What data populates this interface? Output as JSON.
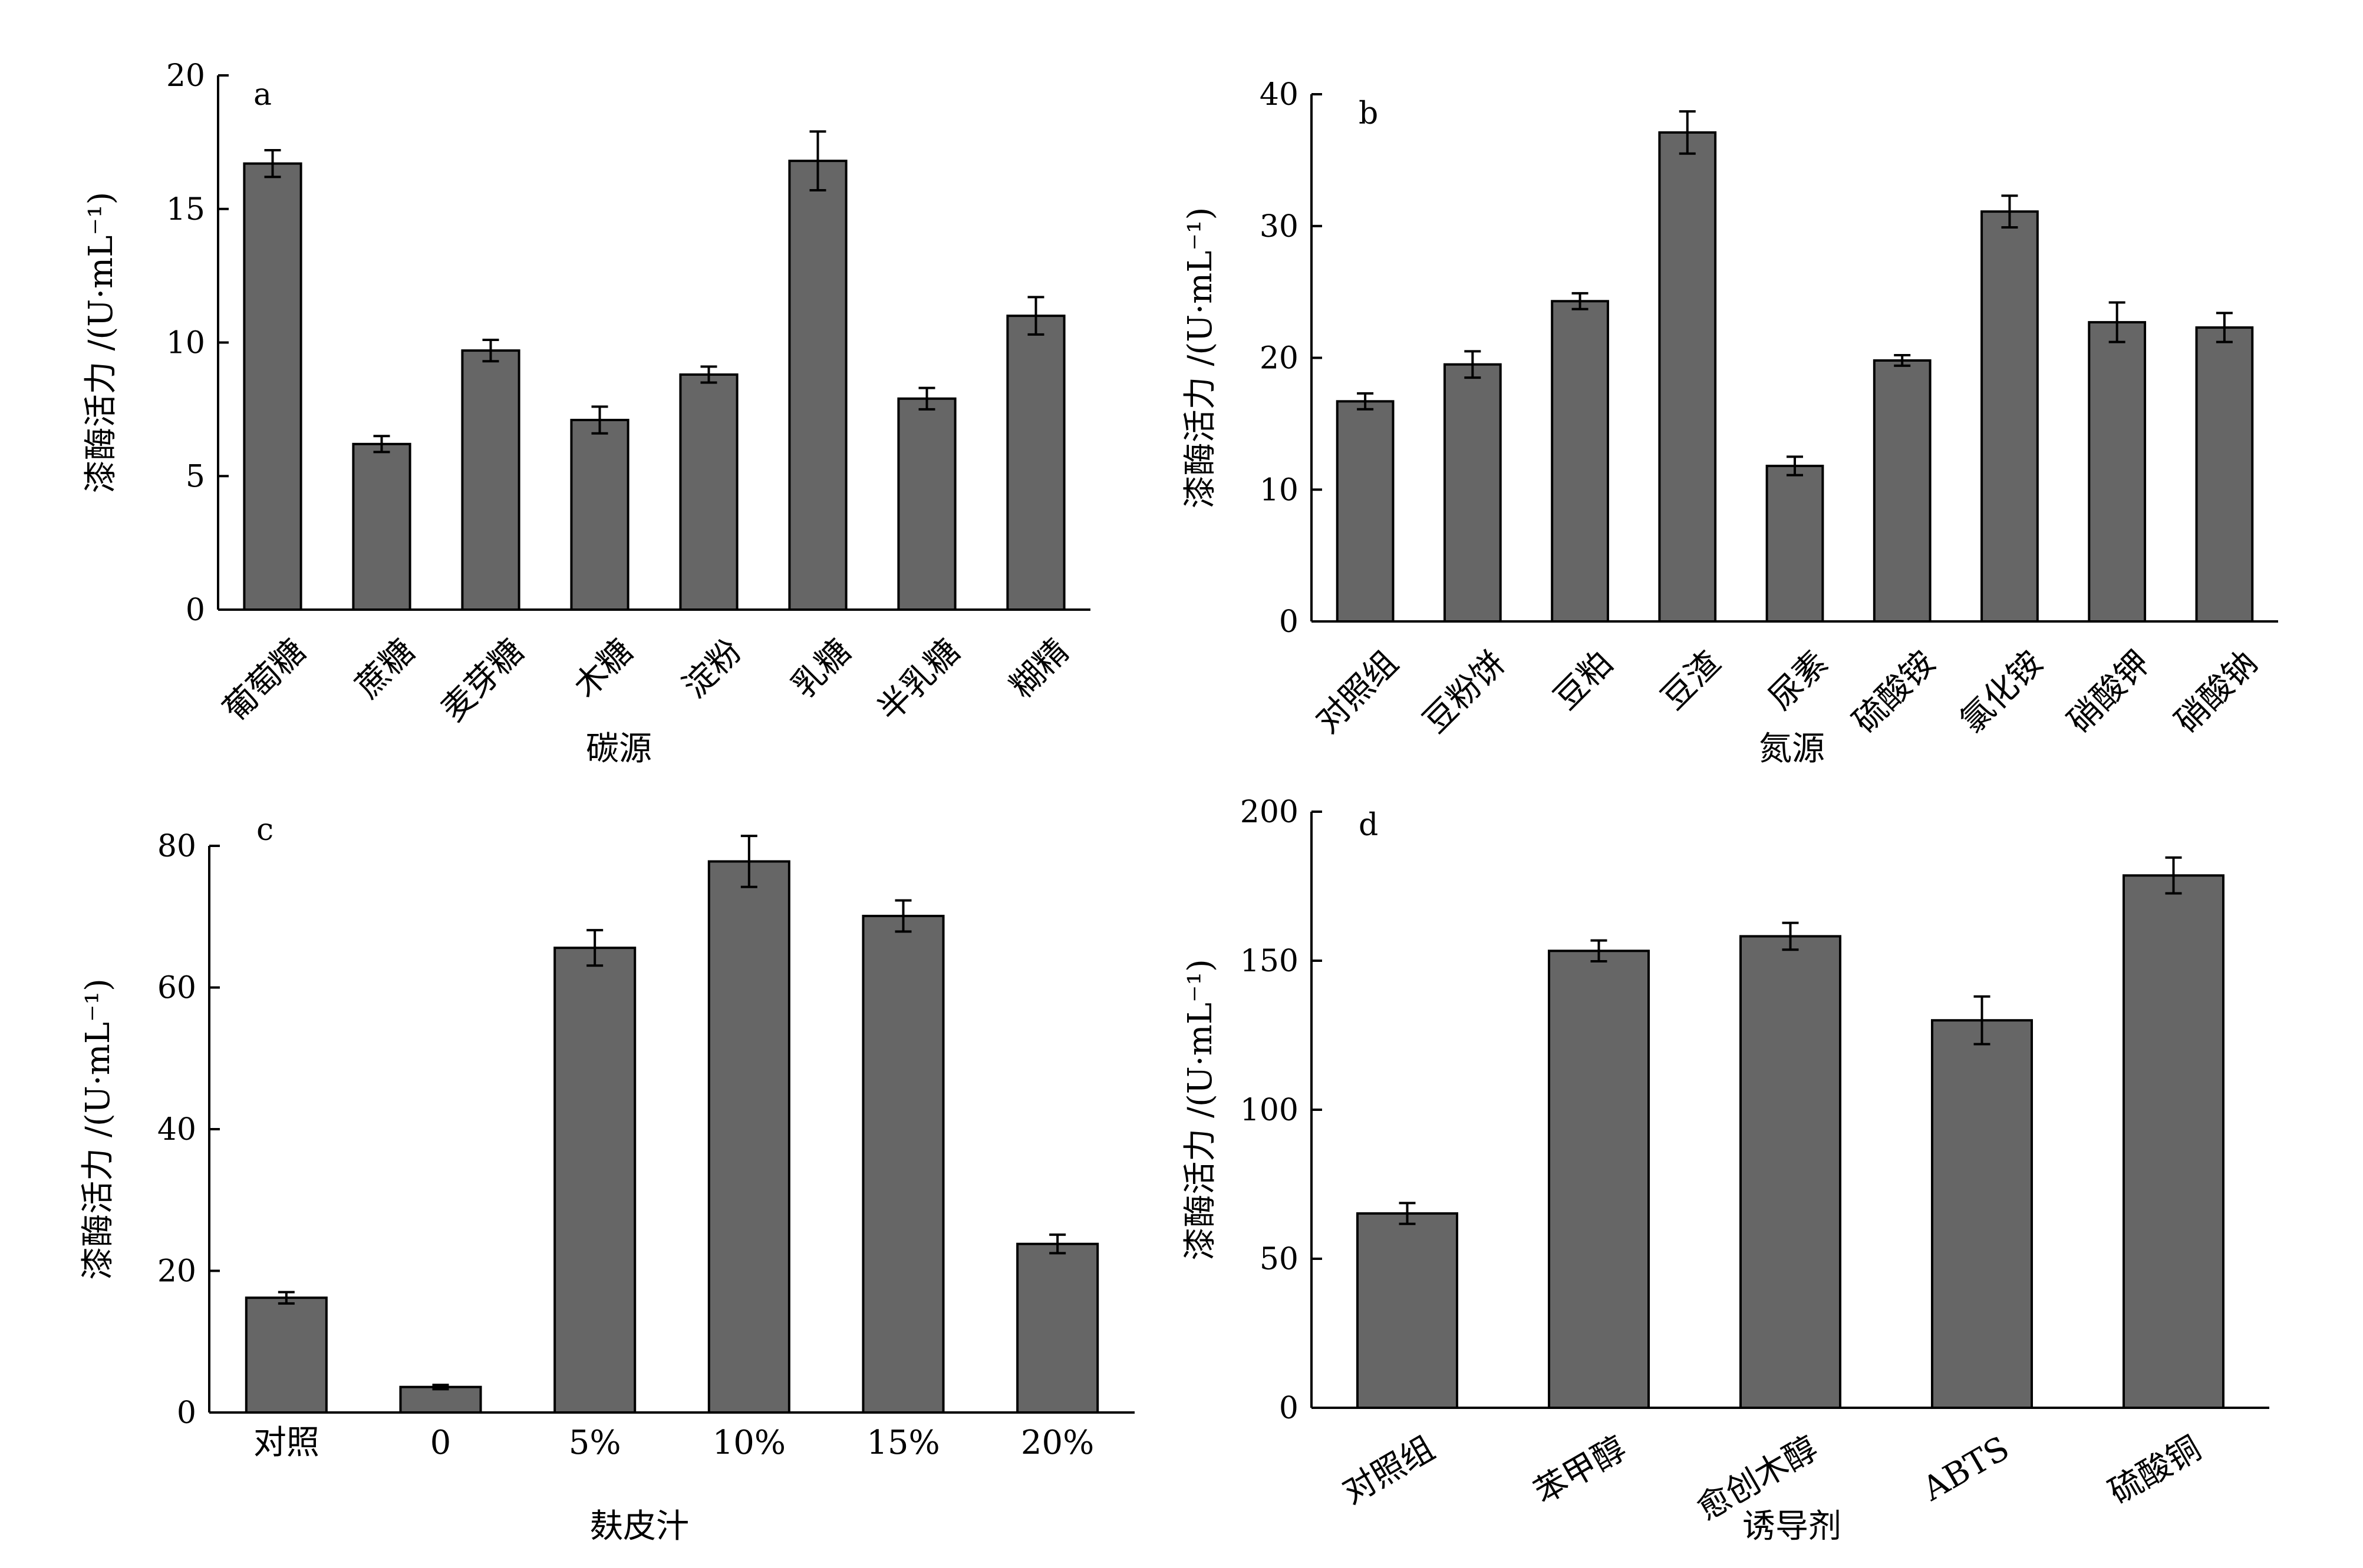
{
  "chart_data": [
    {
      "type": "bar",
      "panel": "a",
      "title": "",
      "ylabel": "漆酶活力 /(U·mL⁻¹)",
      "xlabel": "碳源",
      "ylim": [
        0,
        20
      ],
      "yticks": [
        0,
        5,
        10,
        15,
        20
      ],
      "categories": [
        "葡萄糖",
        "蔗糖",
        "麦芽糖",
        "木糖",
        "淀粉",
        "乳糖",
        "半乳糖",
        "糊精"
      ],
      "values": [
        16.7,
        6.2,
        9.7,
        7.1,
        8.8,
        16.8,
        7.9,
        11.0
      ],
      "errors": [
        0.5,
        0.3,
        0.4,
        0.5,
        0.3,
        1.1,
        0.4,
        0.7
      ],
      "label_rotation": -45,
      "colors": {
        "bar": "#666666"
      }
    },
    {
      "type": "bar",
      "panel": "b",
      "title": "",
      "ylabel": "漆酶活力 /(U·mL⁻¹)",
      "xlabel": "氮源",
      "ylim": [
        0,
        40
      ],
      "yticks": [
        0,
        10,
        20,
        30,
        40
      ],
      "categories": [
        "对照组",
        "豆粉饼",
        "豆粕",
        "豆渣",
        "尿素",
        "硫酸铵",
        "氯化铵",
        "硝酸钾",
        "硝酸钠"
      ],
      "values": [
        16.7,
        19.5,
        24.3,
        37.1,
        11.8,
        19.8,
        31.1,
        22.7,
        22.3
      ],
      "errors": [
        0.6,
        1.0,
        0.6,
        1.6,
        0.7,
        0.4,
        1.2,
        1.5,
        1.1
      ],
      "label_rotation": -45,
      "colors": {
        "bar": "#666666"
      }
    },
    {
      "type": "bar",
      "panel": "c",
      "title": "",
      "ylabel": "漆酶活力 /(U·mL⁻¹)",
      "xlabel": "麸皮汁",
      "ylim": [
        0,
        80
      ],
      "yticks": [
        0,
        20,
        40,
        60,
        80
      ],
      "categories": [
        "对照",
        "0",
        "5%",
        "10%",
        "15%",
        "20%"
      ],
      "values": [
        16.2,
        3.6,
        65.6,
        77.8,
        70.1,
        23.8
      ],
      "errors": [
        0.8,
        0.3,
        2.5,
        3.6,
        2.2,
        1.3
      ],
      "label_rotation": 0,
      "colors": {
        "bar": "#666666"
      }
    },
    {
      "type": "bar",
      "panel": "d",
      "title": "",
      "ylabel": "漆酶活力 /(U·mL⁻¹)",
      "xlabel": "诱导剂",
      "ylim": [
        0,
        200
      ],
      "yticks": [
        0,
        50,
        100,
        150,
        200
      ],
      "categories": [
        "对照组",
        "苯甲醇",
        "愈创木醇",
        "ABTS",
        "硫酸铜"
      ],
      "values": [
        65.2,
        153.3,
        158.2,
        130.0,
        178.6
      ],
      "errors": [
        3.5,
        3.5,
        4.5,
        8.0,
        6.0
      ],
      "label_rotation": -30,
      "colors": {
        "bar": "#666666"
      }
    }
  ]
}
